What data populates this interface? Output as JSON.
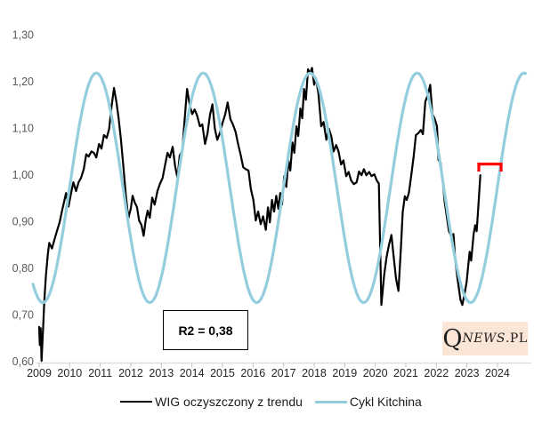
{
  "colors": {
    "wig_black": "#000000",
    "kitchin_blue": "#94cdde",
    "bracket_red": "#ff0000",
    "axis_line": "#d9d9d9",
    "axis_tick": "#bfbfbf",
    "x_label": "#262626",
    "y_label": "#595959",
    "logo_bg": "#fbe5d6"
  },
  "logo": {
    "q": "Q",
    "news": "NEWS",
    "pl": ".PL"
  },
  "chart_data": {
    "type": "line",
    "title": "",
    "x_axis": {
      "ticks": [
        "2009",
        "2010",
        "2011",
        "2012",
        "2013",
        "2014",
        "2015",
        "2016",
        "2017",
        "2018",
        "2019",
        "2020",
        "2021",
        "2022",
        "2023",
        "2024"
      ],
      "range_years": [
        2008.8,
        2024.95
      ]
    },
    "y_axis": {
      "tick_labels": [
        "1,30",
        "1,20",
        "1,10",
        "1,00",
        "0,90",
        "0,80",
        "0,70",
        "0,60"
      ],
      "tick_values": [
        1.3,
        1.2,
        1.1,
        1.0,
        0.9,
        0.8,
        0.7,
        0.6
      ],
      "range": [
        0.6,
        1.3
      ],
      "grid": false
    },
    "annotations": {
      "r2_label": "R2 = 0,38",
      "bracket": {
        "color": "#ff0000",
        "x_start_year": 2023.39,
        "x_end_year": 2024.12,
        "y_value": 1.024,
        "tick_drop": 0.016
      }
    },
    "legend": {
      "position": "bottom",
      "entries": [
        {
          "label": "WIG oczyszczony z trendu",
          "color": "#000000"
        },
        {
          "label": "Cykl Kitchina",
          "color": "#94cdde"
        }
      ]
    },
    "series": [
      {
        "name": "WIG oczyszczony z trendu",
        "type": "line",
        "color": "#000000",
        "points": [
          [
            2009.0,
            0.675
          ],
          [
            2009.02,
            0.636
          ],
          [
            2009.05,
            0.672
          ],
          [
            2009.08,
            0.602
          ],
          [
            2009.13,
            0.675
          ],
          [
            2009.17,
            0.731
          ],
          [
            2009.22,
            0.785
          ],
          [
            2009.28,
            0.828
          ],
          [
            2009.33,
            0.855
          ],
          [
            2009.42,
            0.843
          ],
          [
            2009.5,
            0.862
          ],
          [
            2009.58,
            0.88
          ],
          [
            2009.67,
            0.899
          ],
          [
            2009.75,
            0.924
          ],
          [
            2009.83,
            0.947
          ],
          [
            2009.88,
            0.962
          ],
          [
            2009.96,
            0.933
          ],
          [
            2010.04,
            0.96
          ],
          [
            2010.12,
            0.985
          ],
          [
            2010.21,
            0.966
          ],
          [
            2010.29,
            0.985
          ],
          [
            2010.37,
            0.994
          ],
          [
            2010.46,
            1.013
          ],
          [
            2010.54,
            1.045
          ],
          [
            2010.62,
            1.04
          ],
          [
            2010.71,
            1.051
          ],
          [
            2010.79,
            1.048
          ],
          [
            2010.87,
            1.038
          ],
          [
            2010.96,
            1.067
          ],
          [
            2011.04,
            1.057
          ],
          [
            2011.12,
            1.086
          ],
          [
            2011.21,
            1.08
          ],
          [
            2011.29,
            1.099
          ],
          [
            2011.37,
            1.148
          ],
          [
            2011.45,
            1.187
          ],
          [
            2011.53,
            1.156
          ],
          [
            2011.6,
            1.122
          ],
          [
            2011.68,
            1.074
          ],
          [
            2011.76,
            1.015
          ],
          [
            2011.84,
            0.955
          ],
          [
            2011.92,
            0.908
          ],
          [
            2012.0,
            0.929
          ],
          [
            2012.06,
            0.956
          ],
          [
            2012.13,
            0.941
          ],
          [
            2012.2,
            0.932
          ],
          [
            2012.27,
            0.903
          ],
          [
            2012.35,
            0.893
          ],
          [
            2012.42,
            0.87
          ],
          [
            2012.49,
            0.905
          ],
          [
            2012.55,
            0.924
          ],
          [
            2012.62,
            0.909
          ],
          [
            2012.7,
            0.952
          ],
          [
            2012.78,
            0.937
          ],
          [
            2012.87,
            0.966
          ],
          [
            2012.95,
            0.981
          ],
          [
            2013.04,
            0.994
          ],
          [
            2013.12,
            1.021
          ],
          [
            2013.2,
            1.048
          ],
          [
            2013.28,
            1.038
          ],
          [
            2013.37,
            1.061
          ],
          [
            2013.45,
            1.019
          ],
          [
            2013.53,
            0.994
          ],
          [
            2013.6,
            1.042
          ],
          [
            2013.68,
            1.051
          ],
          [
            2013.76,
            1.118
          ],
          [
            2013.84,
            1.185
          ],
          [
            2013.93,
            1.15
          ],
          [
            2014.01,
            1.131
          ],
          [
            2014.09,
            1.141
          ],
          [
            2014.17,
            1.128
          ],
          [
            2014.26,
            1.105
          ],
          [
            2014.34,
            1.109
          ],
          [
            2014.43,
            1.067
          ],
          [
            2014.51,
            1.09
          ],
          [
            2014.59,
            1.129
          ],
          [
            2014.67,
            1.152
          ],
          [
            2014.75,
            1.1
          ],
          [
            2014.83,
            1.076
          ],
          [
            2014.92,
            1.091
          ],
          [
            2015.0,
            1.112
          ],
          [
            2015.09,
            1.131
          ],
          [
            2015.17,
            1.156
          ],
          [
            2015.26,
            1.12
          ],
          [
            2015.34,
            1.109
          ],
          [
            2015.43,
            1.093
          ],
          [
            2015.51,
            1.067
          ],
          [
            2015.6,
            1.042
          ],
          [
            2015.68,
            1.017
          ],
          [
            2015.76,
            1.013
          ],
          [
            2015.85,
            1.01
          ],
          [
            2015.93,
            0.97
          ],
          [
            2016.01,
            0.947
          ],
          [
            2016.09,
            0.903
          ],
          [
            2016.17,
            0.922
          ],
          [
            2016.25,
            0.895
          ],
          [
            2016.33,
            0.912
          ],
          [
            2016.42,
            0.883
          ],
          [
            2016.49,
            0.931
          ],
          [
            2016.55,
            0.899
          ],
          [
            2016.62,
            0.947
          ],
          [
            2016.69,
            0.922
          ],
          [
            2016.76,
            0.956
          ],
          [
            2016.83,
            0.928
          ],
          [
            2016.89,
            0.962
          ],
          [
            2016.95,
            0.937
          ],
          [
            2017.02,
            0.998
          ],
          [
            2017.09,
            0.975
          ],
          [
            2017.16,
            1.032
          ],
          [
            2017.22,
            1.01
          ],
          [
            2017.29,
            1.07
          ],
          [
            2017.35,
            1.048
          ],
          [
            2017.42,
            1.105
          ],
          [
            2017.48,
            1.084
          ],
          [
            2017.55,
            1.143
          ],
          [
            2017.61,
            1.122
          ],
          [
            2017.67,
            1.185
          ],
          [
            2017.73,
            1.162
          ],
          [
            2017.8,
            1.227
          ],
          [
            2017.87,
            1.218
          ],
          [
            2017.93,
            1.23
          ],
          [
            2018.0,
            1.194
          ],
          [
            2018.06,
            1.208
          ],
          [
            2018.14,
            1.175
          ],
          [
            2018.23,
            1.105
          ],
          [
            2018.31,
            1.114
          ],
          [
            2018.4,
            1.076
          ],
          [
            2018.48,
            1.1
          ],
          [
            2018.56,
            1.084
          ],
          [
            2018.64,
            1.051
          ],
          [
            2018.72,
            1.065
          ],
          [
            2018.8,
            1.051
          ],
          [
            2018.88,
            1.023
          ],
          [
            2018.96,
            1.032
          ],
          [
            2019.05,
            0.998
          ],
          [
            2019.13,
            1.007
          ],
          [
            2019.21,
            0.989
          ],
          [
            2019.3,
            0.981
          ],
          [
            2019.39,
            0.985
          ],
          [
            2019.47,
            1.008
          ],
          [
            2019.55,
            1.0
          ],
          [
            2019.63,
            1.013
          ],
          [
            2019.71,
            1.0
          ],
          [
            2019.8,
            1.007
          ],
          [
            2019.88,
            0.998
          ],
          [
            2019.97,
            1.002
          ],
          [
            2020.05,
            0.989
          ],
          [
            2020.12,
            0.982
          ],
          [
            2020.2,
            0.722
          ],
          [
            2020.29,
            0.785
          ],
          [
            2020.37,
            0.824
          ],
          [
            2020.45,
            0.851
          ],
          [
            2020.53,
            0.872
          ],
          [
            2020.6,
            0.828
          ],
          [
            2020.68,
            0.778
          ],
          [
            2020.76,
            0.752
          ],
          [
            2020.84,
            0.845
          ],
          [
            2020.9,
            0.921
          ],
          [
            2020.97,
            0.955
          ],
          [
            2021.03,
            0.947
          ],
          [
            2021.1,
            0.962
          ],
          [
            2021.18,
            1.0
          ],
          [
            2021.26,
            1.042
          ],
          [
            2021.33,
            1.086
          ],
          [
            2021.41,
            1.09
          ],
          [
            2021.49,
            1.097
          ],
          [
            2021.56,
            1.088
          ],
          [
            2021.64,
            1.158
          ],
          [
            2021.72,
            1.172
          ],
          [
            2021.8,
            1.194
          ],
          [
            2021.87,
            1.131
          ],
          [
            2021.94,
            1.122
          ],
          [
            2022.02,
            1.105
          ],
          [
            2022.07,
            1.032
          ],
          [
            2022.14,
            1.027
          ],
          [
            2022.2,
            0.994
          ],
          [
            2022.27,
            0.943
          ],
          [
            2022.34,
            0.912
          ],
          [
            2022.41,
            0.88
          ],
          [
            2022.49,
            0.869
          ],
          [
            2022.56,
            0.874
          ],
          [
            2022.62,
            0.817
          ],
          [
            2022.68,
            0.785
          ],
          [
            2022.73,
            0.76
          ],
          [
            2022.79,
            0.733
          ],
          [
            2022.85,
            0.722
          ],
          [
            2022.93,
            0.748
          ],
          [
            2022.99,
            0.771
          ],
          [
            2023.04,
            0.804
          ],
          [
            2023.09,
            0.836
          ],
          [
            2023.14,
            0.817
          ],
          [
            2023.22,
            0.874
          ],
          [
            2023.27,
            0.893
          ],
          [
            2023.32,
            0.88
          ],
          [
            2023.37,
            0.928
          ],
          [
            2023.44,
            1.0
          ]
        ]
      },
      {
        "name": "Cykl Kitchina",
        "type": "cosine",
        "color": "#94cdde",
        "midline": 0.973,
        "amplitude": 0.246,
        "period_years": 3.5,
        "peak_year": 2010.87,
        "start_year": 2008.8,
        "end_year": 2024.95
      }
    ]
  }
}
